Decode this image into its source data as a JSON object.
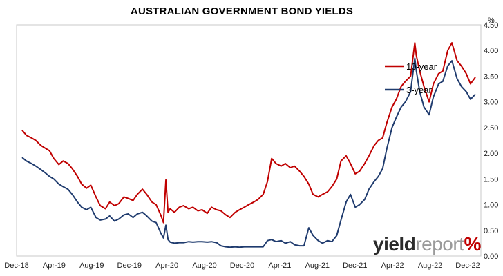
{
  "title": "AUSTRALIAN GOVERNMENT BOND YIELDS",
  "watermark": {
    "part1": "yield",
    "part2": "report",
    "part3": "%"
  },
  "colors": {
    "ten_year": "#c00000",
    "three_year": "#1f3b6e",
    "frame": "#c8c8c8"
  },
  "chart_data": {
    "type": "line",
    "title": "AUSTRALIAN GOVERNMENT BOND YIELDS",
    "ylabel": "%",
    "ylim": [
      0.0,
      4.5
    ],
    "y_axis_side": "right",
    "yticks": [
      "0.00",
      "0.50",
      "1.00",
      "1.50",
      "2.00",
      "2.50",
      "3.00",
      "3.50",
      "4.00",
      "4.50"
    ],
    "xlim": [
      "2018-12-01",
      "2022-12-31"
    ],
    "xticks": [
      "Dec-18",
      "Apr-19",
      "Aug-19",
      "Dec-19",
      "Apr-20",
      "Aug-20",
      "Dec-20",
      "Apr-21",
      "Aug-21",
      "Dec-21",
      "Apr-22",
      "Aug-22",
      "Dec-22"
    ],
    "grid": false,
    "legend_position": "upper-right inside plot",
    "series": [
      {
        "name": "10-year",
        "color": "#c00000",
        "points": [
          [
            "2018-12-01",
            2.45
          ],
          [
            "2018-12-15",
            2.35
          ],
          [
            "2019-01-01",
            2.3
          ],
          [
            "2019-01-15",
            2.25
          ],
          [
            "2019-02-01",
            2.15
          ],
          [
            "2019-02-15",
            2.1
          ],
          [
            "2019-03-01",
            2.05
          ],
          [
            "2019-03-15",
            1.9
          ],
          [
            "2019-04-01",
            1.78
          ],
          [
            "2019-04-15",
            1.85
          ],
          [
            "2019-05-01",
            1.8
          ],
          [
            "2019-05-15",
            1.7
          ],
          [
            "2019-06-01",
            1.55
          ],
          [
            "2019-06-15",
            1.4
          ],
          [
            "2019-07-01",
            1.32
          ],
          [
            "2019-07-15",
            1.38
          ],
          [
            "2019-08-01",
            1.15
          ],
          [
            "2019-08-15",
            0.98
          ],
          [
            "2019-09-01",
            0.92
          ],
          [
            "2019-09-15",
            1.05
          ],
          [
            "2019-10-01",
            0.98
          ],
          [
            "2019-10-15",
            1.02
          ],
          [
            "2019-11-01",
            1.15
          ],
          [
            "2019-11-15",
            1.12
          ],
          [
            "2019-12-01",
            1.08
          ],
          [
            "2019-12-15",
            1.2
          ],
          [
            "2020-01-01",
            1.3
          ],
          [
            "2020-01-15",
            1.2
          ],
          [
            "2020-02-01",
            1.05
          ],
          [
            "2020-02-15",
            1.0
          ],
          [
            "2020-03-01",
            0.8
          ],
          [
            "2020-03-10",
            0.65
          ],
          [
            "2020-03-18",
            1.48
          ],
          [
            "2020-03-25",
            0.85
          ],
          [
            "2020-04-01",
            0.92
          ],
          [
            "2020-04-15",
            0.85
          ],
          [
            "2020-05-01",
            0.95
          ],
          [
            "2020-05-15",
            0.98
          ],
          [
            "2020-06-01",
            0.92
          ],
          [
            "2020-06-15",
            0.95
          ],
          [
            "2020-07-01",
            0.88
          ],
          [
            "2020-07-15",
            0.9
          ],
          [
            "2020-08-01",
            0.83
          ],
          [
            "2020-08-15",
            0.95
          ],
          [
            "2020-09-01",
            0.9
          ],
          [
            "2020-09-15",
            0.88
          ],
          [
            "2020-10-01",
            0.8
          ],
          [
            "2020-10-15",
            0.75
          ],
          [
            "2020-11-01",
            0.85
          ],
          [
            "2020-11-15",
            0.9
          ],
          [
            "2020-12-01",
            0.95
          ],
          [
            "2020-12-15",
            1.0
          ],
          [
            "2021-01-01",
            1.05
          ],
          [
            "2021-01-15",
            1.1
          ],
          [
            "2021-02-01",
            1.2
          ],
          [
            "2021-02-15",
            1.45
          ],
          [
            "2021-03-01",
            1.9
          ],
          [
            "2021-03-15",
            1.8
          ],
          [
            "2021-04-01",
            1.75
          ],
          [
            "2021-04-15",
            1.8
          ],
          [
            "2021-05-01",
            1.72
          ],
          [
            "2021-05-15",
            1.75
          ],
          [
            "2021-06-01",
            1.65
          ],
          [
            "2021-06-15",
            1.55
          ],
          [
            "2021-07-01",
            1.4
          ],
          [
            "2021-07-15",
            1.2
          ],
          [
            "2021-08-01",
            1.15
          ],
          [
            "2021-08-15",
            1.2
          ],
          [
            "2021-09-01",
            1.25
          ],
          [
            "2021-09-15",
            1.35
          ],
          [
            "2021-10-01",
            1.5
          ],
          [
            "2021-10-15",
            1.85
          ],
          [
            "2021-11-01",
            1.95
          ],
          [
            "2021-11-15",
            1.8
          ],
          [
            "2021-12-01",
            1.6
          ],
          [
            "2021-12-15",
            1.65
          ],
          [
            "2022-01-01",
            1.8
          ],
          [
            "2022-01-15",
            1.95
          ],
          [
            "2022-02-01",
            2.15
          ],
          [
            "2022-02-15",
            2.25
          ],
          [
            "2022-03-01",
            2.3
          ],
          [
            "2022-03-15",
            2.6
          ],
          [
            "2022-04-01",
            2.9
          ],
          [
            "2022-04-15",
            3.05
          ],
          [
            "2022-05-01",
            3.3
          ],
          [
            "2022-05-15",
            3.4
          ],
          [
            "2022-06-01",
            3.5
          ],
          [
            "2022-06-15",
            4.15
          ],
          [
            "2022-06-20",
            3.9
          ],
          [
            "2022-07-01",
            3.6
          ],
          [
            "2022-07-15",
            3.3
          ],
          [
            "2022-08-01",
            3.0
          ],
          [
            "2022-08-15",
            3.35
          ],
          [
            "2022-09-01",
            3.55
          ],
          [
            "2022-09-15",
            3.6
          ],
          [
            "2022-10-01",
            4.0
          ],
          [
            "2022-10-15",
            4.15
          ],
          [
            "2022-11-01",
            3.8
          ],
          [
            "2022-11-15",
            3.7
          ],
          [
            "2022-12-01",
            3.55
          ],
          [
            "2022-12-15",
            3.35
          ],
          [
            "2022-12-31",
            3.48
          ]
        ]
      },
      {
        "name": "3-year",
        "color": "#1f3b6e",
        "points": [
          [
            "2018-12-01",
            1.92
          ],
          [
            "2018-12-15",
            1.85
          ],
          [
            "2019-01-01",
            1.8
          ],
          [
            "2019-01-15",
            1.75
          ],
          [
            "2019-02-01",
            1.68
          ],
          [
            "2019-02-15",
            1.62
          ],
          [
            "2019-03-01",
            1.55
          ],
          [
            "2019-03-15",
            1.5
          ],
          [
            "2019-04-01",
            1.4
          ],
          [
            "2019-04-15",
            1.35
          ],
          [
            "2019-05-01",
            1.3
          ],
          [
            "2019-05-15",
            1.2
          ],
          [
            "2019-06-01",
            1.05
          ],
          [
            "2019-06-15",
            0.95
          ],
          [
            "2019-07-01",
            0.9
          ],
          [
            "2019-07-15",
            0.95
          ],
          [
            "2019-08-01",
            0.75
          ],
          [
            "2019-08-15",
            0.7
          ],
          [
            "2019-09-01",
            0.72
          ],
          [
            "2019-09-15",
            0.78
          ],
          [
            "2019-10-01",
            0.68
          ],
          [
            "2019-10-15",
            0.72
          ],
          [
            "2019-11-01",
            0.8
          ],
          [
            "2019-11-15",
            0.82
          ],
          [
            "2019-12-01",
            0.75
          ],
          [
            "2019-12-15",
            0.82
          ],
          [
            "2020-01-01",
            0.85
          ],
          [
            "2020-01-15",
            0.78
          ],
          [
            "2020-02-01",
            0.68
          ],
          [
            "2020-02-15",
            0.65
          ],
          [
            "2020-03-01",
            0.45
          ],
          [
            "2020-03-10",
            0.35
          ],
          [
            "2020-03-18",
            0.6
          ],
          [
            "2020-03-25",
            0.32
          ],
          [
            "2020-04-01",
            0.27
          ],
          [
            "2020-04-15",
            0.25
          ],
          [
            "2020-05-01",
            0.26
          ],
          [
            "2020-05-15",
            0.26
          ],
          [
            "2020-06-01",
            0.28
          ],
          [
            "2020-06-15",
            0.27
          ],
          [
            "2020-07-01",
            0.28
          ],
          [
            "2020-07-15",
            0.28
          ],
          [
            "2020-08-01",
            0.27
          ],
          [
            "2020-08-15",
            0.28
          ],
          [
            "2020-09-01",
            0.26
          ],
          [
            "2020-09-15",
            0.2
          ],
          [
            "2020-10-01",
            0.18
          ],
          [
            "2020-10-15",
            0.17
          ],
          [
            "2020-11-01",
            0.18
          ],
          [
            "2020-11-15",
            0.17
          ],
          [
            "2020-12-01",
            0.18
          ],
          [
            "2020-12-15",
            0.18
          ],
          [
            "2021-01-01",
            0.18
          ],
          [
            "2021-01-15",
            0.18
          ],
          [
            "2021-02-01",
            0.18
          ],
          [
            "2021-02-15",
            0.3
          ],
          [
            "2021-03-01",
            0.32
          ],
          [
            "2021-03-15",
            0.28
          ],
          [
            "2021-04-01",
            0.3
          ],
          [
            "2021-04-15",
            0.25
          ],
          [
            "2021-05-01",
            0.28
          ],
          [
            "2021-05-15",
            0.22
          ],
          [
            "2021-06-01",
            0.2
          ],
          [
            "2021-06-15",
            0.2
          ],
          [
            "2021-07-01",
            0.55
          ],
          [
            "2021-07-15",
            0.4
          ],
          [
            "2021-08-01",
            0.3
          ],
          [
            "2021-08-15",
            0.25
          ],
          [
            "2021-09-01",
            0.3
          ],
          [
            "2021-09-15",
            0.28
          ],
          [
            "2021-10-01",
            0.4
          ],
          [
            "2021-10-15",
            0.7
          ],
          [
            "2021-11-01",
            1.05
          ],
          [
            "2021-11-15",
            1.2
          ],
          [
            "2021-12-01",
            0.95
          ],
          [
            "2021-12-15",
            1.0
          ],
          [
            "2022-01-01",
            1.1
          ],
          [
            "2022-01-15",
            1.3
          ],
          [
            "2022-02-01",
            1.45
          ],
          [
            "2022-02-15",
            1.55
          ],
          [
            "2022-03-01",
            1.7
          ],
          [
            "2022-03-15",
            2.1
          ],
          [
            "2022-04-01",
            2.5
          ],
          [
            "2022-04-15",
            2.7
          ],
          [
            "2022-05-01",
            2.9
          ],
          [
            "2022-05-15",
            3.0
          ],
          [
            "2022-06-01",
            3.2
          ],
          [
            "2022-06-15",
            3.85
          ],
          [
            "2022-06-20",
            3.6
          ],
          [
            "2022-07-01",
            3.2
          ],
          [
            "2022-07-15",
            2.9
          ],
          [
            "2022-08-01",
            2.75
          ],
          [
            "2022-08-15",
            3.1
          ],
          [
            "2022-09-01",
            3.35
          ],
          [
            "2022-09-15",
            3.4
          ],
          [
            "2022-10-01",
            3.7
          ],
          [
            "2022-10-15",
            3.8
          ],
          [
            "2022-11-01",
            3.45
          ],
          [
            "2022-11-15",
            3.3
          ],
          [
            "2022-12-01",
            3.2
          ],
          [
            "2022-12-15",
            3.05
          ],
          [
            "2022-12-31",
            3.15
          ]
        ]
      }
    ]
  }
}
